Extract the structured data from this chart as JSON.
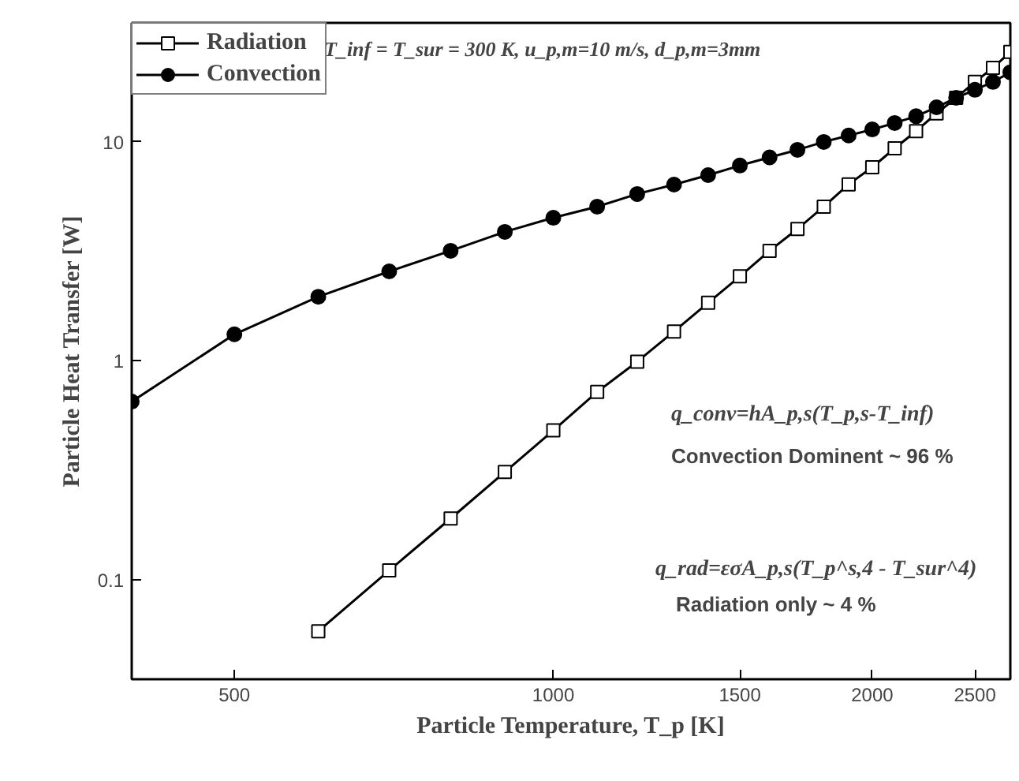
{
  "chart_data": {
    "type": "line",
    "xlabel": "Particle Temperature, T_p [K]",
    "ylabel": "Particle Heat Transfer [W]",
    "x": [
      400,
      500,
      600,
      700,
      800,
      900,
      1000,
      1100,
      1200,
      1300,
      1400,
      1500,
      1600,
      1700,
      1800,
      1900,
      2000,
      2100,
      2200,
      2300,
      2400,
      2500,
      2600,
      2700
    ],
    "series": [
      {
        "name": "Radiation",
        "color": "#000000",
        "marker": "square",
        "values": [
          null,
          null,
          0.058,
          0.11,
          0.19,
          0.31,
          0.48,
          0.72,
          0.99,
          1.36,
          1.84,
          2.43,
          3.18,
          4.0,
          5.06,
          6.4,
          7.66,
          9.35,
          11.2,
          13.5,
          15.9,
          18.8,
          21.8,
          25.8
        ]
      },
      {
        "name": "Convection",
        "color": "#000000",
        "marker": "circle",
        "values": [
          0.65,
          1.32,
          1.96,
          2.56,
          3.18,
          3.88,
          4.5,
          5.06,
          5.78,
          6.38,
          7.05,
          7.8,
          8.5,
          9.2,
          10,
          10.7,
          11.4,
          12.2,
          13.1,
          14.4,
          15.9,
          17.3,
          18.8,
          20.8
        ]
      }
    ],
    "log": "xy",
    "xlim": [
      400,
      2700
    ],
    "ylim": [
      0.035,
      35
    ],
    "xticks": [
      500,
      1000,
      1500,
      2000,
      2500
    ],
    "yticks": [
      0.1,
      1,
      10
    ],
    "grid": false,
    "legend": "top left",
    "line_style": "solid",
    "annotations": [
      "T_inf = T_sur = 300 K, u_p,m=10 m/s, d_p,m=3mm",
      "q_conv=hA_p,s(T_p,s-T_inf)",
      "Convection Dominent ~ 96 %",
      "q_rad=εσA_p,s(T_p^s,4 - T_sur^4)",
      "Radiation only ~ 4 %"
    ]
  }
}
